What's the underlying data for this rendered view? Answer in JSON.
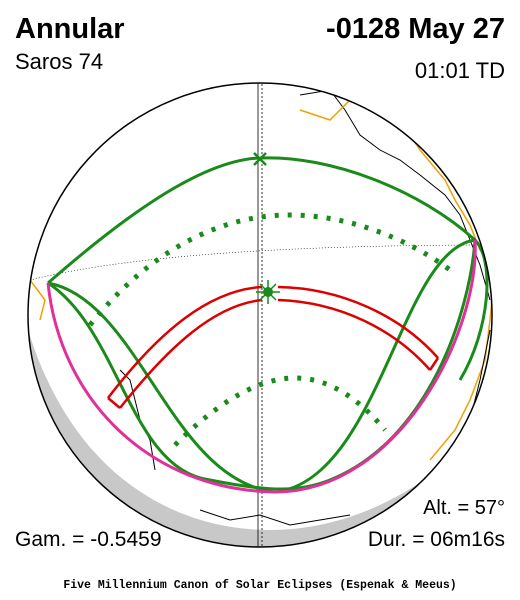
{
  "header": {
    "title": "Annular",
    "saros": "Saros  74",
    "date": "-0128 May 27",
    "time": "01:01 TD"
  },
  "stats": {
    "altitude": "Alt. = 57°",
    "gamma": "Gam. = -0.5459",
    "duration": "Dur. = 06m16s"
  },
  "footer": "Five Millennium Canon of Solar Eclipses (Espenak & Meeus)"
}
